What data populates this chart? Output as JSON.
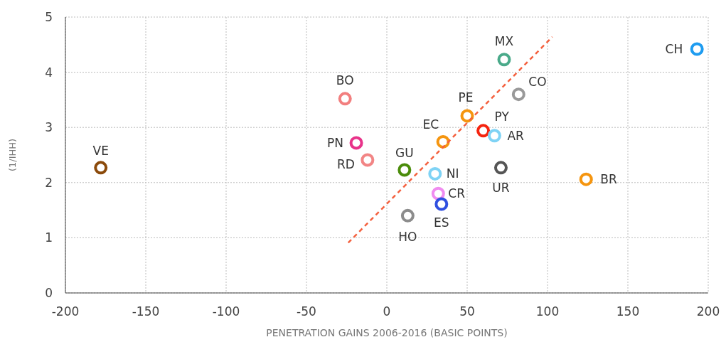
{
  "chart_data": {
    "type": "scatter",
    "xlabel": "PENETRATION GAINS 2006-2016 (BASIC POINTS)",
    "ylabel": "(1/IHH)",
    "xlim": [
      -200,
      200
    ],
    "xticks": [
      -200,
      -150,
      -100,
      -50,
      0,
      50,
      100,
      150,
      200
    ],
    "ylim": [
      0,
      5
    ],
    "yticks": [
      0,
      1,
      2,
      3,
      4,
      5
    ],
    "grid": true,
    "marker": "circle",
    "series": [
      {
        "name": "VE",
        "color": "#8b4a0b",
        "x": [
          -178
        ],
        "values": [
          2.27
        ]
      },
      {
        "name": "BO",
        "color": "#f27f7f",
        "x": [
          -26
        ],
        "values": [
          3.52
        ]
      },
      {
        "name": "PN",
        "color": "#e8338a",
        "x": [
          -19
        ],
        "values": [
          2.72
        ]
      },
      {
        "name": "RD",
        "color": "#f28585",
        "x": [
          -12
        ],
        "values": [
          2.41
        ]
      },
      {
        "name": "GU",
        "color": "#4a8c0a",
        "x": [
          11
        ],
        "values": [
          2.23
        ]
      },
      {
        "name": "HO",
        "color": "#8c8c8c",
        "x": [
          13
        ],
        "values": [
          1.4
        ]
      },
      {
        "name": "NI",
        "color": "#7fd3f5",
        "x": [
          30
        ],
        "values": [
          2.16
        ]
      },
      {
        "name": "CR",
        "color": "#f08cf0",
        "x": [
          32
        ],
        "values": [
          1.8
        ]
      },
      {
        "name": "ES",
        "color": "#2f4fe0",
        "x": [
          34
        ],
        "values": [
          1.61
        ]
      },
      {
        "name": "EC",
        "color": "#f5950f",
        "x": [
          35
        ],
        "values": [
          2.74
        ]
      },
      {
        "name": "PE",
        "color": "#f5950f",
        "x": [
          50
        ],
        "values": [
          3.21
        ]
      },
      {
        "name": "PY",
        "color": "#f5240f",
        "x": [
          60
        ],
        "values": [
          2.94
        ]
      },
      {
        "name": "AR",
        "color": "#7fd3f5",
        "x": [
          67
        ],
        "values": [
          2.85
        ]
      },
      {
        "name": "UR",
        "color": "#555555",
        "x": [
          71
        ],
        "values": [
          2.27
        ]
      },
      {
        "name": "MX",
        "color": "#4aaa8a",
        "x": [
          73
        ],
        "values": [
          4.23
        ]
      },
      {
        "name": "CO",
        "color": "#999999",
        "x": [
          82
        ],
        "values": [
          3.6
        ]
      },
      {
        "name": "BR",
        "color": "#f5950f",
        "x": [
          124
        ],
        "values": [
          2.06
        ]
      },
      {
        "name": "CH",
        "color": "#1e9cf0",
        "x": [
          193
        ],
        "values": [
          4.42
        ]
      },
      {
        "type": "line",
        "color": "#f4603e",
        "line_style": "dashed",
        "marker": "none",
        "x": [
          -24,
          103
        ],
        "values": [
          0.91,
          4.64
        ]
      }
    ]
  }
}
